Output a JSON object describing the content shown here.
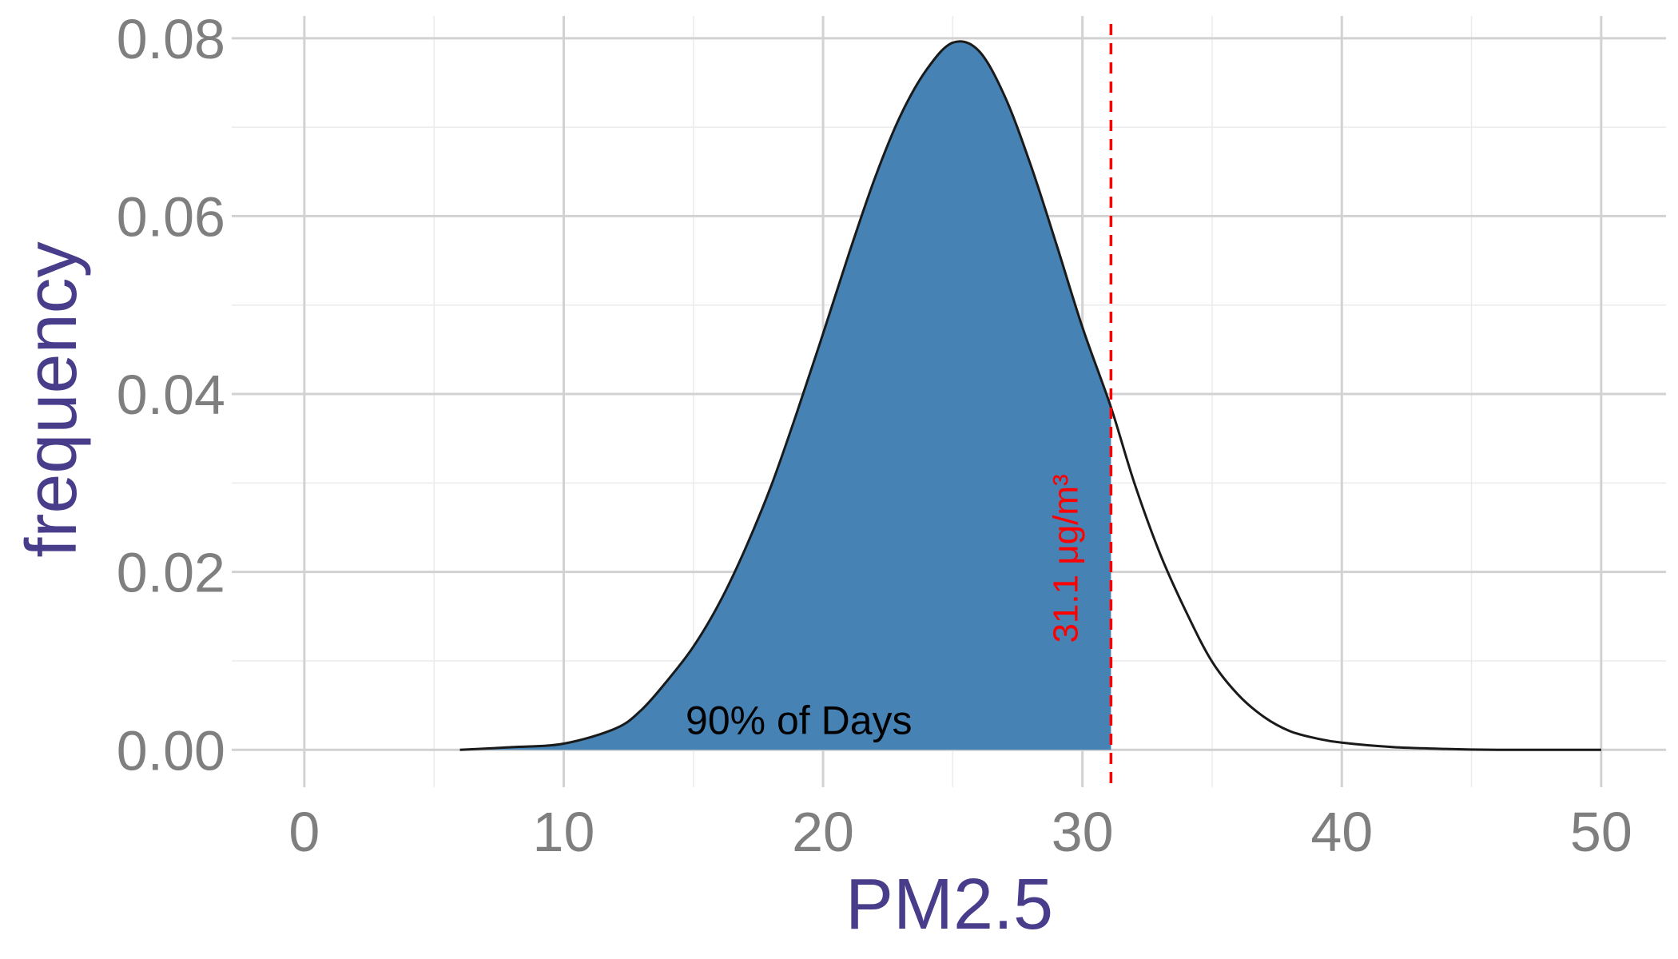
{
  "chart_data": {
    "type": "area",
    "xlabel": "PM2.5",
    "ylabel": "frequency",
    "xlim": [
      -2.8,
      52.5
    ],
    "ylim": [
      -0.0042,
      0.0825
    ],
    "x_ticks": [
      "0",
      "10",
      "20",
      "30",
      "40",
      "50"
    ],
    "y_ticks": [
      "0.00",
      "0.02",
      "0.04",
      "0.06",
      "0.08"
    ],
    "grid": true,
    "distribution": {
      "x": [
        6,
        8,
        10,
        12,
        13,
        14,
        15,
        16,
        17,
        18,
        19,
        20,
        21,
        22,
        23,
        24,
        25,
        26,
        27,
        28,
        29,
        30,
        31.1,
        32,
        33,
        34,
        35,
        36,
        37,
        38,
        39,
        40,
        42,
        44,
        46,
        48,
        50
      ],
      "y": [
        0.0,
        0.0003,
        0.0007,
        0.0024,
        0.0045,
        0.0078,
        0.0116,
        0.0165,
        0.0226,
        0.0297,
        0.038,
        0.0468,
        0.0558,
        0.0643,
        0.0714,
        0.0765,
        0.0795,
        0.0786,
        0.0735,
        0.0658,
        0.0568,
        0.0475,
        0.0385,
        0.03,
        0.022,
        0.0155,
        0.0099,
        0.0062,
        0.0037,
        0.0021,
        0.0013,
        0.0008,
        0.0003,
        0.0001,
        0.0,
        0.0,
        0.0
      ]
    },
    "shaded_region": {
      "x_min": 6,
      "x_max": 31.1,
      "label": "90% of Days",
      "color": "#4682b4"
    },
    "threshold": {
      "x": 31.1,
      "label": "31.1 μg/m³",
      "color": "#ff0000"
    }
  }
}
